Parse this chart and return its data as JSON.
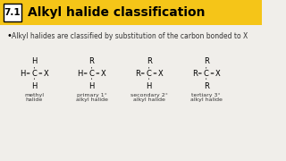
{
  "title": "Alkyl halide classification",
  "section_num": "7.1",
  "header_bg": "#F5C518",
  "bullet_text": "Alkyl halides are classified by substitution of the carbon bonded to X",
  "bg_color": "#F0EEEA",
  "structures": [
    {
      "label": "methyl\nhalide",
      "center_atom": "C",
      "left": "H",
      "right": "X",
      "top": "H",
      "bottom": "H"
    },
    {
      "label": "primary 1°\nalkyl halide",
      "center_atom": "C",
      "left": "H",
      "right": "X",
      "top": "R",
      "bottom": "H"
    },
    {
      "label": "secondary 2°\nalkyl halide",
      "center_atom": "C",
      "left": "R",
      "right": "X",
      "top": "R",
      "bottom": "H"
    },
    {
      "label": "tertiary 3°\nalkyl halide",
      "center_atom": "C",
      "left": "R",
      "right": "X",
      "top": "R",
      "bottom": "R"
    }
  ]
}
